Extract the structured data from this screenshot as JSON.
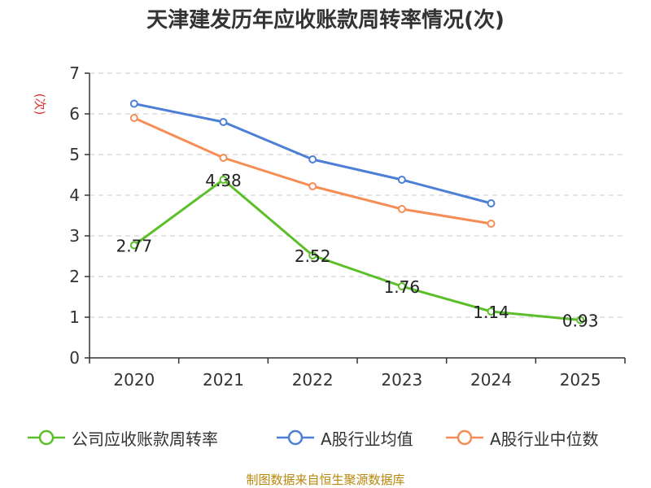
{
  "chart_data": {
    "type": "line",
    "title": "天津建发历年应收账款周转率情况(次)",
    "ylabel": "(次)",
    "xlabel": "",
    "categories": [
      "2020",
      "2021",
      "2022",
      "2023",
      "2024",
      "2025"
    ],
    "ylim": [
      0,
      7
    ],
    "yticks": [
      0,
      1,
      2,
      3,
      4,
      5,
      6,
      7
    ],
    "grid": true,
    "legend_position": "bottom",
    "series": [
      {
        "name": "公司应收账款周转率",
        "color": "#5cbf2a",
        "values": [
          2.77,
          4.38,
          2.52,
          1.76,
          1.14,
          0.93
        ],
        "labels": [
          "2.77",
          "4.38",
          "2.52",
          "1.76",
          "1.14",
          "0.93"
        ]
      },
      {
        "name": "A股行业均值",
        "color": "#4e7fd6",
        "values": [
          6.25,
          5.8,
          4.88,
          4.38,
          3.8,
          null
        ]
      },
      {
        "name": "A股行业中位数",
        "color": "#f58d55",
        "values": [
          5.9,
          4.92,
          4.22,
          3.66,
          3.3,
          null
        ]
      }
    ],
    "source": "制图数据来自恒生聚源数据库"
  }
}
